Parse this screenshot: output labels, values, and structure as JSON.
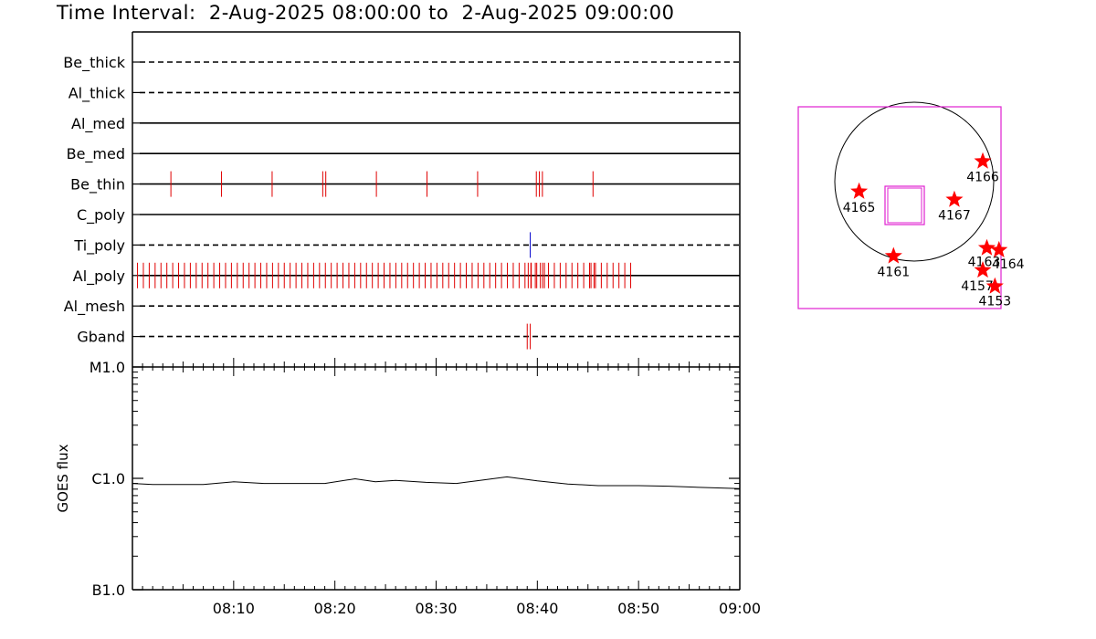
{
  "page": {
    "title": "Time Interval:  2-Aug-2025 08:00:00 to  2-Aug-2025 09:00:00"
  },
  "colors": {
    "event_red": "#e00000",
    "event_blue": "#0000cc",
    "fov_magenta": "#e020d0",
    "star_red": "#ff0000",
    "axis": "#000000"
  },
  "chart_data": [
    {
      "type": "timeline",
      "x_unit": "minutes after 08:00",
      "xlim": [
        0,
        60
      ],
      "rows": [
        {
          "name": "Be_thick",
          "line": "dashed",
          "events": []
        },
        {
          "name": "Al_thick",
          "line": "dashed",
          "events": []
        },
        {
          "name": "Al_med",
          "line": "solid",
          "events": []
        },
        {
          "name": "Be_med",
          "line": "solid",
          "events": []
        },
        {
          "name": "Be_thin",
          "line": "solid",
          "events": [
            3.8,
            8.8,
            13.8,
            18.8,
            19.1,
            24.1,
            29.1,
            34.1,
            39.9,
            40.2,
            40.5,
            45.5
          ]
        },
        {
          "name": "C_poly",
          "line": "solid",
          "events": []
        },
        {
          "name": "Ti_poly",
          "line": "dashed",
          "events": [
            39.3
          ],
          "event_color": "blue"
        },
        {
          "name": "Al_poly",
          "line": "solid",
          "events": "dense",
          "event_range": [
            0.5,
            49.5
          ],
          "extra_events": [
            39.1,
            39.4,
            39.8,
            40.3,
            40.7,
            45.3,
            45.6
          ]
        },
        {
          "name": "Al_mesh",
          "line": "dashed",
          "events": []
        },
        {
          "name": "Gband",
          "line": "dashed",
          "events": [
            39.0,
            39.3
          ]
        }
      ]
    },
    {
      "type": "line",
      "ylabel": "GOES flux",
      "yscale": "log",
      "yticks": [
        "B1.0",
        "C1.0",
        "M1.0"
      ],
      "ylim": [
        1e-07,
        1e-05
      ],
      "xticks": [
        "08:10",
        "08:20",
        "08:30",
        "08:40",
        "08:50",
        "09:00"
      ],
      "xlim": [
        0,
        60
      ],
      "x": [
        0,
        2,
        4,
        7,
        10,
        13,
        16,
        19,
        22,
        24,
        26,
        29,
        32,
        34,
        37,
        40,
        43,
        46,
        50,
        53,
        56,
        60
      ],
      "values": [
        9e-07,
        8.8e-07,
        8.8e-07,
        8.8e-07,
        9.3e-07,
        9e-07,
        9e-07,
        9e-07,
        9.9e-07,
        9.3e-07,
        9.6e-07,
        9.2e-07,
        9e-07,
        9.5e-07,
        1.03e-06,
        9.5e-07,
        8.9e-07,
        8.6e-07,
        8.6e-07,
        8.5e-07,
        8.3e-07,
        8.1e-07
      ]
    },
    {
      "type": "scatter",
      "description_free": true,
      "points": [
        {
          "label": "4165",
          "x": 0.3,
          "y": 0.58
        },
        {
          "label": "4161",
          "x": 0.47,
          "y": 0.26
        },
        {
          "label": "4167",
          "x": 0.77,
          "y": 0.54
        },
        {
          "label": "4166",
          "x": 0.91,
          "y": 0.73
        },
        {
          "label": "4163",
          "x": 0.93,
          "y": 0.3
        },
        {
          "label": "4164",
          "x": 0.99,
          "y": 0.29
        },
        {
          "label": "4157",
          "x": 0.91,
          "y": 0.19
        },
        {
          "label": "4153",
          "x": 0.97,
          "y": 0.11
        }
      ]
    }
  ]
}
